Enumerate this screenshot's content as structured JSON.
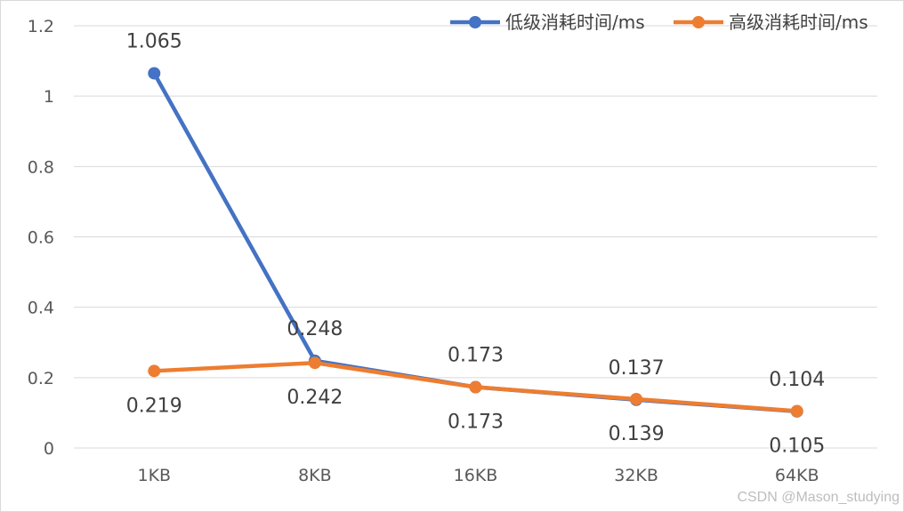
{
  "chart_data": {
    "type": "line",
    "title": "",
    "xlabel": "",
    "ylabel": "",
    "categories": [
      "1KB",
      "8KB",
      "16KB",
      "32KB",
      "64KB"
    ],
    "ylim": [
      0,
      1.2
    ],
    "yticks": [
      0,
      0.2,
      0.4,
      0.6,
      0.8,
      1,
      1.2
    ],
    "ytick_labels": [
      "0",
      "0.2",
      "0.4",
      "0.6",
      "0.8",
      "1",
      "1.2"
    ],
    "grid": "horizontal",
    "legend_position": "top-right",
    "series": [
      {
        "name": "低级消耗时间/ms",
        "color": "#4472C4",
        "values": [
          1.065,
          0.248,
          0.173,
          0.137,
          0.104
        ],
        "labels": [
          "1.065",
          "0.248",
          "0.173",
          "0.137",
          "0.104"
        ],
        "label_position": "above"
      },
      {
        "name": "高级消耗时间/ms",
        "color": "#ED7D31",
        "values": [
          0.219,
          0.242,
          0.173,
          0.139,
          0.105
        ],
        "labels": [
          "0.219",
          "0.242",
          "0.173",
          "0.139",
          "0.105"
        ],
        "label_position": "below"
      }
    ]
  },
  "watermark": "CSDN @Mason_studying"
}
